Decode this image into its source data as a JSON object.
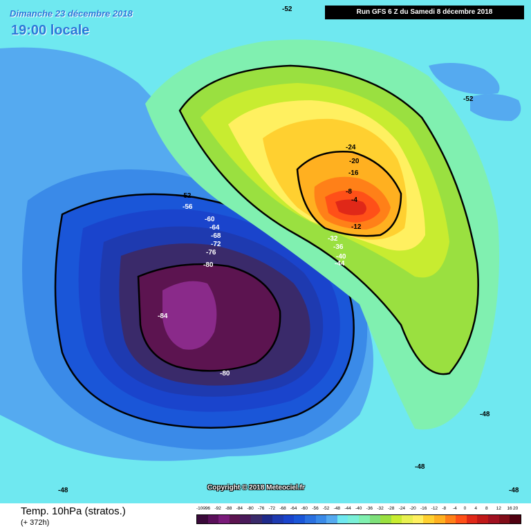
{
  "header": {
    "date": "Dimanche 23 décembre 2018",
    "time": "19:00 locale",
    "run": "Run GFS 6 Z du Samedi 8 décembre 2018"
  },
  "footer": {
    "copyright": "Copyright © 2018 Meteociel.fr",
    "variable": "Temp. 10hPa (stratos.)",
    "lead": "(+ 372h)"
  },
  "map_labels": [
    "-52",
    "-52",
    "-24",
    "-20",
    "-16",
    "-8",
    "-4",
    "-12",
    "-52",
    "-56",
    "-60",
    "-64",
    "-68",
    "-72",
    "-76",
    "-80",
    "-84",
    "-80",
    "-48",
    "-48",
    "-48",
    "-48",
    "-32",
    "-36",
    "-40",
    "-44"
  ],
  "legend": {
    "ticks": [
      "-100",
      "-96",
      "-92",
      "-88",
      "-84",
      "-80",
      "-76",
      "-72",
      "-68",
      "-64",
      "-60",
      "-56",
      "-52",
      "-48",
      "-44",
      "-40",
      "-36",
      "-32",
      "-28",
      "-24",
      "-20",
      "-16",
      "-12",
      "-8",
      "-4",
      "0",
      "4",
      "8",
      "12",
      "16",
      "20"
    ],
    "colors": [
      "#3a0a3a",
      "#5a0f5a",
      "#7a1a7a",
      "#5c1450",
      "#4a1a5a",
      "#3a2a6a",
      "#1e2a8a",
      "#1e3ab0",
      "#1a44cc",
      "#1a56d8",
      "#2a70e0",
      "#3a8ae8",
      "#55aaf0",
      "#6fe8f0",
      "#7af0d8",
      "#80f0b0",
      "#7ee07a",
      "#9ae040",
      "#c8ec30",
      "#e8f050",
      "#fff060",
      "#ffd030",
      "#ffb020",
      "#ff8018",
      "#ff5018",
      "#e02818",
      "#c01818",
      "#a01020",
      "#800c18",
      "#500010"
    ]
  }
}
